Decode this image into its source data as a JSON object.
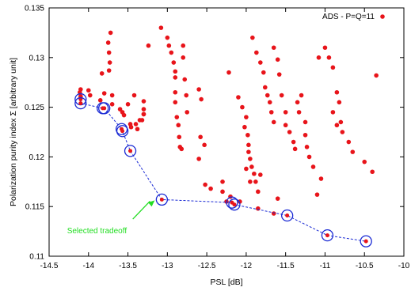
{
  "chart_data": {
    "type": "scatter",
    "xlabel": "PSL [dB]",
    "ylabel": "Polarization purity index Σ [arbitrary unit]",
    "xlim": [
      -14.5,
      -10
    ],
    "ylim": [
      0.11,
      0.135
    ],
    "xticks": [
      -14.5,
      -14,
      -13.5,
      -13,
      -12.5,
      -12,
      -11.5,
      -11,
      -10.5,
      -10
    ],
    "xtick_labels": [
      "-14.5",
      "-14",
      "-13.5",
      "-13",
      "-12.5",
      "-12",
      "-11.5",
      "-11",
      "-10.5",
      "-10"
    ],
    "yticks": [
      0.11,
      0.115,
      0.12,
      0.125,
      0.13,
      0.135
    ],
    "ytick_labels": [
      "0.11",
      "0.115",
      "0.12",
      "0.125",
      "0.13",
      "0.135"
    ],
    "grid": false,
    "legend_position": "top-right",
    "colors": {
      "points": "#e8141a",
      "front": "#1a2ad4",
      "annotation": "#22dd22"
    },
    "series": [
      {
        "name": "ADS - P=Q=11",
        "style": "points",
        "x": [
          -14.1,
          -14.11,
          -14.1,
          -14.0,
          -13.98,
          -13.85,
          -13.8,
          -13.83,
          -13.72,
          -13.75,
          -13.74,
          -13.73,
          -13.74,
          -13.7,
          -13.7,
          -13.6,
          -13.57,
          -13.55,
          -13.5,
          -13.47,
          -13.46,
          -13.42,
          -13.38,
          -13.4,
          -13.35,
          -13.32,
          -13.3,
          -13.3,
          -13.3,
          -13.3,
          -13.24,
          -13.08,
          -13.0,
          -12.98,
          -12.95,
          -12.92,
          -12.9,
          -12.9,
          -12.9,
          -12.9,
          -12.88,
          -12.86,
          -12.85,
          -12.84,
          -12.82,
          -12.8,
          -12.8,
          -12.78,
          -12.76,
          -12.75,
          -12.6,
          -12.57,
          -12.58,
          -12.53,
          -12.6,
          -12.45,
          -12.22,
          -12.3,
          -12.1,
          -12.05,
          -12.0,
          -12.02,
          -11.98,
          -11.97,
          -11.97,
          -11.95,
          -11.93,
          -11.9,
          -11.88,
          -11.85,
          -11.92,
          -11.87,
          -11.82,
          -11.78,
          -11.76,
          -11.73,
          -11.7,
          -11.68,
          -11.65,
          -11.65,
          -11.6,
          -11.58,
          -11.55,
          -11.5,
          -11.5,
          -11.45,
          -11.4,
          -11.38,
          -11.3,
          -11.35,
          -11.33,
          -11.25,
          -11.25,
          -11.23,
          -11.2,
          -11.15,
          -11.1,
          -11.05,
          -10.95,
          -10.9,
          -10.85,
          -10.82,
          -10.9,
          -10.85,
          -11.08,
          -11.0,
          -10.8,
          -10.78,
          -10.7,
          -10.65,
          -10.5,
          -10.4,
          -10.35,
          -12.3,
          -12.25,
          -12.52,
          -12.2,
          -12.0,
          -12.08,
          -11.95,
          -11.85,
          -11.82,
          -11.65,
          -11.6
        ],
        "y": [
          0.1268,
          0.1265,
          0.1261,
          0.1267,
          0.1262,
          0.1257,
          0.1264,
          0.1284,
          0.1325,
          0.1315,
          0.1305,
          0.1295,
          0.1287,
          0.1253,
          0.1262,
          0.1248,
          0.1245,
          0.1242,
          0.1253,
          0.1233,
          0.123,
          0.1262,
          0.1228,
          0.1233,
          0.1237,
          0.1237,
          0.1243,
          0.1243,
          0.1248,
          0.1256,
          0.1312,
          0.133,
          0.132,
          0.1312,
          0.1305,
          0.1295,
          0.1286,
          0.128,
          0.1265,
          0.1255,
          0.124,
          0.1232,
          0.122,
          0.121,
          0.1208,
          0.13,
          0.1312,
          0.1278,
          0.1262,
          0.1245,
          0.1268,
          0.1258,
          0.122,
          0.1212,
          0.1198,
          0.1168,
          0.1285,
          0.1165,
          0.126,
          0.125,
          0.124,
          0.123,
          0.1222,
          0.1212,
          0.1205,
          0.1198,
          0.119,
          0.1183,
          0.1175,
          0.1165,
          0.132,
          0.1305,
          0.1295,
          0.1285,
          0.127,
          0.1262,
          0.1255,
          0.1245,
          0.1235,
          0.131,
          0.1298,
          0.1283,
          0.1262,
          0.1245,
          0.1232,
          0.1225,
          0.1215,
          0.1208,
          0.1262,
          0.1255,
          0.1245,
          0.1235,
          0.1222,
          0.121,
          0.12,
          0.119,
          0.1162,
          0.1178,
          0.13,
          0.129,
          0.1265,
          0.1255,
          0.1245,
          0.1232,
          0.13,
          0.131,
          0.1235,
          0.1225,
          0.1215,
          0.1205,
          0.1195,
          0.1185,
          0.1282,
          0.1175,
          0.1155,
          0.1172,
          0.116,
          0.1188,
          0.1155,
          0.1175,
          0.1148,
          0.1182,
          0.1143,
          0.1158
        ]
      },
      {
        "name": "",
        "style": "line-circles",
        "x": [
          -14.1,
          -14.1,
          -13.82,
          -13.8,
          -13.58,
          -13.57,
          -13.47,
          -13.07,
          -12.18,
          -12.15,
          -11.48,
          -10.97,
          -10.48
        ],
        "y": [
          0.1258,
          0.1254,
          0.1249,
          0.1249,
          0.1228,
          0.1226,
          0.1206,
          0.1157,
          0.1154,
          0.1152,
          0.1141,
          0.1121,
          0.1115
        ]
      }
    ],
    "legend": [
      {
        "label": "ADS - P=Q=11"
      }
    ],
    "annotation": {
      "text": "Selected tradeoff",
      "x": -13.8,
      "y": 0.1135,
      "target_x": -13.1,
      "target_y": 0.1157
    }
  }
}
